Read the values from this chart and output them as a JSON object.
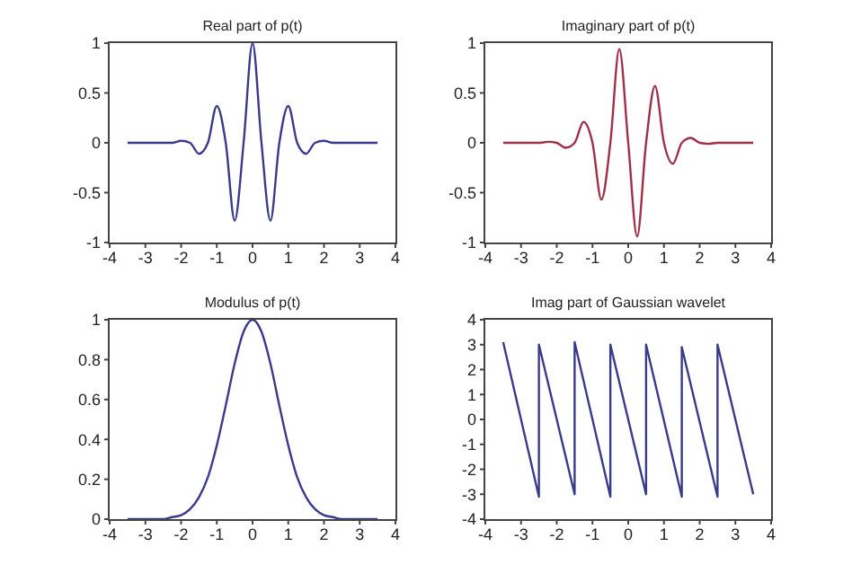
{
  "chart_data": [
    {
      "type": "line",
      "title": "Real part of p(t)",
      "x": [
        -3.5,
        -3.25,
        -3,
        -2.75,
        -2.5,
        -2.25,
        -2,
        -1.75,
        -1.5,
        -1.25,
        -1,
        -0.75,
        -0.5,
        -0.25,
        0,
        0.25,
        0.5,
        0.75,
        1,
        1.25,
        1.5,
        1.75,
        2,
        2.25,
        2.5,
        2.75,
        3,
        3.25,
        3.5
      ],
      "series": [
        {
          "color": "#3a3a8c",
          "values": [
            0,
            0,
            0,
            0,
            0,
            0,
            0.02,
            0,
            -0.11,
            0,
            0.37,
            0,
            -0.78,
            0,
            1,
            0,
            -0.78,
            0,
            0.37,
            0,
            -0.11,
            0,
            0.02,
            0,
            0,
            0,
            0,
            0,
            0
          ]
        }
      ],
      "xlim": [
        -4,
        4
      ],
      "xticks": [
        -4,
        -3,
        -2,
        -1,
        0,
        1,
        2,
        3,
        4
      ],
      "ylim": [
        -1,
        1
      ],
      "yticks": [
        -1,
        -0.5,
        0,
        0.5,
        1
      ]
    },
    {
      "type": "line",
      "title": "Imaginary part of p(t)",
      "x": [
        -3.5,
        -3.25,
        -3,
        -2.75,
        -2.5,
        -2.25,
        -2,
        -1.75,
        -1.5,
        -1.25,
        -1,
        -0.75,
        -0.5,
        -0.25,
        0,
        0.25,
        0.5,
        0.75,
        1,
        1.25,
        1.5,
        1.75,
        2,
        2.25,
        2.5,
        2.75,
        3,
        3.25,
        3.5
      ],
      "series": [
        {
          "color": "#a03048",
          "values": [
            0,
            0,
            0,
            0,
            0,
            0.01,
            0,
            -0.05,
            0,
            0.21,
            0,
            -0.57,
            0,
            0.94,
            0,
            -0.94,
            0,
            0.57,
            0,
            -0.21,
            0,
            0.05,
            0,
            -0.01,
            0,
            0,
            0,
            0,
            0
          ]
        }
      ],
      "xlim": [
        -4,
        4
      ],
      "xticks": [
        -4,
        -3,
        -2,
        -1,
        0,
        1,
        2,
        3,
        4
      ],
      "ylim": [
        -1,
        1
      ],
      "yticks": [
        -1,
        -0.5,
        0,
        0.5,
        1
      ]
    },
    {
      "type": "line",
      "title": "Modulus of p(t)",
      "x": [
        -3.5,
        -3.25,
        -3,
        -2.75,
        -2.5,
        -2.25,
        -2,
        -1.75,
        -1.5,
        -1.25,
        -1,
        -0.75,
        -0.5,
        -0.25,
        0,
        0.25,
        0.5,
        0.75,
        1,
        1.25,
        1.5,
        1.75,
        2,
        2.25,
        2.5,
        2.75,
        3,
        3.25,
        3.5
      ],
      "series": [
        {
          "color": "#3a3a8c",
          "values": [
            0,
            0,
            0,
            0,
            0,
            0.01,
            0.02,
            0.05,
            0.11,
            0.21,
            0.37,
            0.57,
            0.78,
            0.94,
            1,
            0.94,
            0.78,
            0.57,
            0.37,
            0.21,
            0.11,
            0.05,
            0.02,
            0.01,
            0,
            0,
            0,
            0,
            0
          ]
        }
      ],
      "xlim": [
        -4,
        4
      ],
      "xticks": [
        -4,
        -3,
        -2,
        -1,
        0,
        1,
        2,
        3,
        4
      ],
      "ylim": [
        0,
        1
      ],
      "yticks": [
        0,
        0.2,
        0.4,
        0.6,
        0.8,
        1
      ]
    },
    {
      "type": "line",
      "title": "Imag part of Gaussian wavelet",
      "x": [
        -3.5,
        -2.5,
        -2.5,
        -1.5,
        -1.5,
        -0.5,
        -0.5,
        0.5,
        0.5,
        1.5,
        1.5,
        2.5,
        2.5,
        3.5
      ],
      "series": [
        {
          "color": "#3a3a8c",
          "values": [
            3.1,
            -3.1,
            3,
            -3,
            3.1,
            -3.1,
            3,
            -3,
            3,
            -3.1,
            2.9,
            -3.1,
            3,
            -3
          ]
        }
      ],
      "xlim": [
        -4,
        4
      ],
      "xticks": [
        -4,
        -3,
        -2,
        -1,
        0,
        1,
        2,
        3,
        4
      ],
      "ylim": [
        -4,
        4
      ],
      "yticks": [
        -4,
        -3,
        -2,
        -1,
        0,
        1,
        2,
        3,
        4
      ]
    }
  ]
}
